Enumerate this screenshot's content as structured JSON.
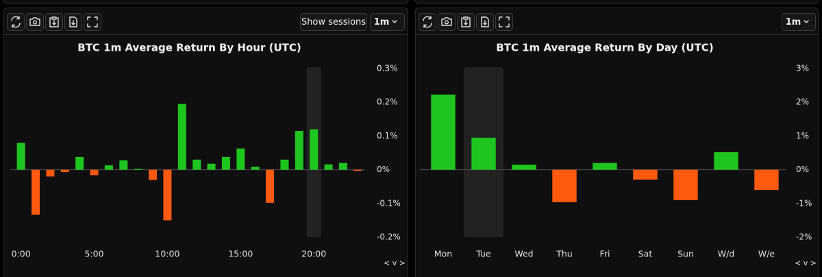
{
  "toolbar": {
    "show_sessions": "Show sessions",
    "interval_left": "1m",
    "interval_right": "1m"
  },
  "chart_data": [
    {
      "type": "bar",
      "title": "BTC 1m Average Return By Hour (UTC)",
      "categories": [
        "0:00",
        null,
        null,
        null,
        null,
        "5:00",
        null,
        null,
        null,
        null,
        "10:00",
        null,
        null,
        null,
        null,
        "15:00",
        null,
        null,
        null,
        null,
        "20:00",
        null,
        null,
        null
      ],
      "values": [
        0.08,
        -0.133,
        -0.02,
        -0.007,
        0.038,
        -0.016,
        0.013,
        0.028,
        0.003,
        -0.03,
        -0.15,
        0.195,
        0.03,
        0.018,
        0.038,
        0.063,
        0.009,
        -0.098,
        0.03,
        0.115,
        0.12,
        0.016,
        0.02,
        -0.003
      ],
      "color": "#1ec51e",
      "negative_color": "#ff5a10",
      "ylim": [
        -0.2,
        0.3
      ],
      "yticks": [
        {
          "value": 0.3,
          "label": "0.3%"
        },
        {
          "value": 0.2,
          "label": "0.2%"
        },
        {
          "value": 0.1,
          "label": "0.1%"
        },
        {
          "value": 0,
          "label": "0%"
        },
        {
          "value": -0.1,
          "label": "-0.1%"
        },
        {
          "value": -0.2,
          "label": "-0.2%"
        }
      ],
      "highlight": 20,
      "nav": "< v >"
    },
    {
      "type": "bar",
      "title": "BTC 1m Average Return By Day (UTC)",
      "categories": [
        "Mon",
        "Tue",
        "Wed",
        "Thu",
        "Fri",
        "Sat",
        "Sun",
        "W/d",
        "W/e"
      ],
      "values": [
        2.23,
        0.95,
        0.15,
        -0.96,
        0.2,
        -0.29,
        -0.9,
        0.52,
        -0.6
      ],
      "color": "#1ec51e",
      "negative_color": "#ff5a10",
      "ylim": [
        -2,
        3
      ],
      "yticks": [
        {
          "value": 3,
          "label": "3%"
        },
        {
          "value": 2,
          "label": "2%"
        },
        {
          "value": 1,
          "label": "1%"
        },
        {
          "value": 0,
          "label": "0%"
        },
        {
          "value": -1,
          "label": "-1%"
        },
        {
          "value": -2,
          "label": "-2%"
        }
      ],
      "highlight": 1,
      "nav": "< v >"
    }
  ]
}
